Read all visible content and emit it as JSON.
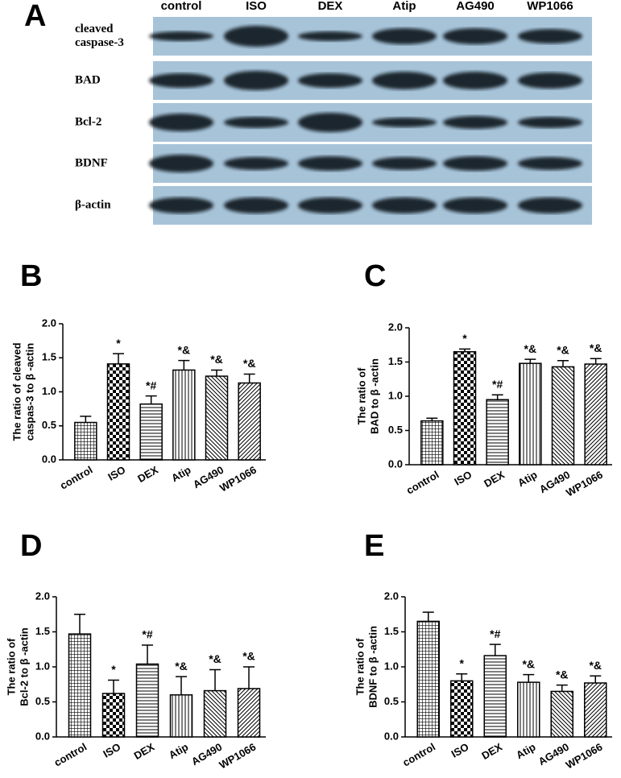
{
  "blot": {
    "panel": "A",
    "lanes": [
      "control",
      "ISO",
      "DEX",
      "Atip",
      "AG490",
      "WP1066"
    ],
    "rows": [
      [
        "cleaved",
        "caspase-3"
      ],
      [
        "BAD"
      ],
      [
        "Bcl-2"
      ],
      [
        "BDNF"
      ],
      [
        "β-actin"
      ]
    ]
  },
  "chart_data": [
    {
      "type": "bar",
      "panel": "B",
      "ylabel": [
        "The ratio of cleaved",
        "caspas-3 to β -actin"
      ],
      "categories": [
        "control",
        "ISO",
        "DEX",
        "Atip",
        "AG490",
        "WP1066"
      ],
      "values": [
        0.55,
        1.41,
        0.82,
        1.32,
        1.23,
        1.13
      ],
      "errors": [
        0.09,
        0.15,
        0.12,
        0.14,
        0.09,
        0.13
      ],
      "annotations": [
        null,
        "*",
        "*#",
        "*&",
        "*&",
        "*&"
      ],
      "color": "#000000",
      "ylim": [
        0,
        2
      ],
      "yticks": [
        {
          "value": 0,
          "label": "0.0"
        },
        0.5,
        {
          "value": 1,
          "label": "1.0"
        },
        1.5,
        {
          "value": 2,
          "label": "2.0"
        }
      ]
    },
    {
      "type": "bar",
      "panel": "C",
      "ylabel": [
        "The ratio of",
        "BAD to β -actin"
      ],
      "categories": [
        "control",
        "ISO",
        "DEX",
        "Atip",
        "AG490",
        "WP1066"
      ],
      "values": [
        0.64,
        1.65,
        0.95,
        1.48,
        1.43,
        1.47
      ],
      "errors": [
        0.04,
        0.04,
        0.07,
        0.06,
        0.09,
        0.08
      ],
      "annotations": [
        null,
        "*",
        "*#",
        "*&",
        "*&",
        "*&"
      ],
      "color": "#000000",
      "ylim": [
        0,
        2
      ],
      "yticks": [
        {
          "value": 0,
          "label": "0.0"
        },
        0.5,
        {
          "value": 1,
          "label": "1.0"
        },
        1.5,
        {
          "value": 2,
          "label": "2.0"
        }
      ]
    },
    {
      "type": "bar",
      "panel": "D",
      "ylabel": [
        "The ratio of",
        "Bcl-2 to β -actin"
      ],
      "categories": [
        "control",
        "ISO",
        "DEX",
        "Atip",
        "AG490",
        "WP1066"
      ],
      "values": [
        1.47,
        0.62,
        1.04,
        0.6,
        0.66,
        0.69
      ],
      "errors": [
        0.28,
        0.19,
        0.27,
        0.26,
        0.3,
        0.31
      ],
      "annotations": [
        null,
        "*",
        "*#",
        "*&",
        "*&",
        "*&"
      ],
      "color": "#000000",
      "ylim": [
        0,
        2
      ],
      "yticks": [
        {
          "value": 0,
          "label": "0.0"
        },
        0.5,
        {
          "value": 1,
          "label": "1.0"
        },
        1.5,
        {
          "value": 2,
          "label": "2.0"
        }
      ]
    },
    {
      "type": "bar",
      "panel": "E",
      "ylabel": [
        "The ratio of",
        "BDNF to β -actin"
      ],
      "categories": [
        "control",
        "ISO",
        "DEX",
        "Atip",
        "AG490",
        "WP1066"
      ],
      "values": [
        1.65,
        0.8,
        1.16,
        0.78,
        0.65,
        0.77
      ],
      "errors": [
        0.13,
        0.1,
        0.16,
        0.11,
        0.09,
        0.1
      ],
      "annotations": [
        null,
        "*",
        "*#",
        "*&",
        "*&",
        "*&"
      ],
      "color": "#000000",
      "ylim": [
        0,
        2
      ],
      "yticks": [
        {
          "value": 0,
          "label": "0.0"
        },
        0.5,
        {
          "value": 1,
          "label": "1.0"
        },
        1.5,
        {
          "value": 2,
          "label": "2.0"
        }
      ]
    }
  ]
}
